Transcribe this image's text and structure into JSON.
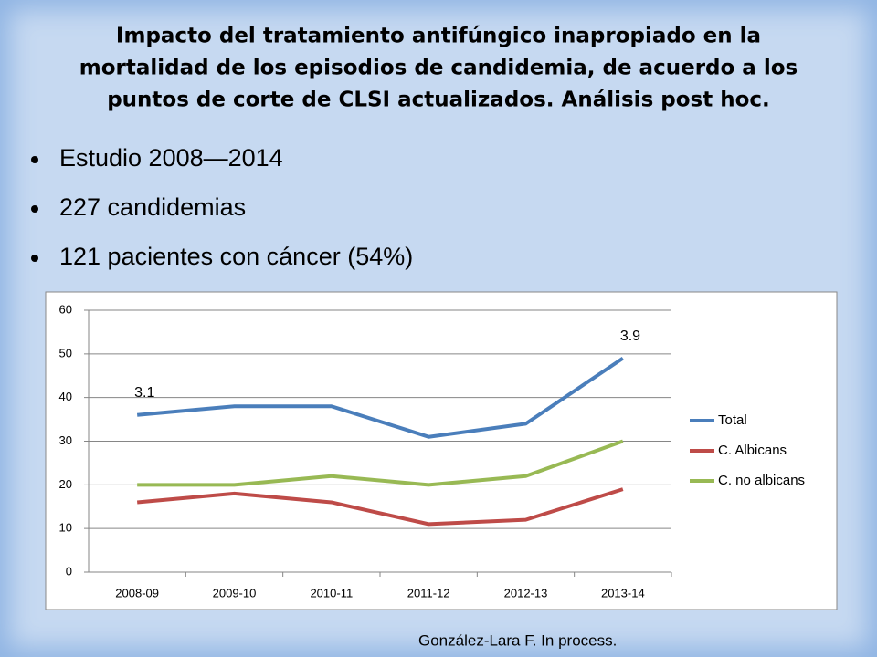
{
  "title": [
    "Impacto del tratamiento antifúngico inapropiado en la",
    "mortalidad de los episodios de candidemia, de acuerdo a los",
    "puntos de corte de CLSI actualizados.  Análisis post hoc."
  ],
  "bullets": [
    "Estudio 2008—2014",
    "227 candidemias",
    "121 pacientes con cáncer (54%)"
  ],
  "footer": "González-Lara F. In process.",
  "chart_data": {
    "type": "line",
    "categories": [
      "2008-09",
      "2009-10",
      "2010-11",
      "2011-12",
      "2012-13",
      "2013-14"
    ],
    "series": [
      {
        "name": "Total",
        "color": "#4a7ebb",
        "values": [
          36,
          38,
          38,
          31,
          34,
          49
        ]
      },
      {
        "name": "C. Albicans",
        "color": "#be4b48",
        "values": [
          16,
          18,
          16,
          11,
          12,
          19
        ]
      },
      {
        "name": "C. no albicans",
        "color": "#98b954",
        "values": [
          20,
          20,
          22,
          20,
          22,
          30
        ]
      }
    ],
    "annotations": [
      {
        "text": "3.1",
        "x": "2008-09"
      },
      {
        "text": "3.9",
        "x": "2013-14"
      }
    ],
    "ylim": [
      0,
      60
    ],
    "yticks": [
      0,
      10,
      20,
      30,
      40,
      50,
      60
    ],
    "grid": true,
    "legend": "right"
  }
}
